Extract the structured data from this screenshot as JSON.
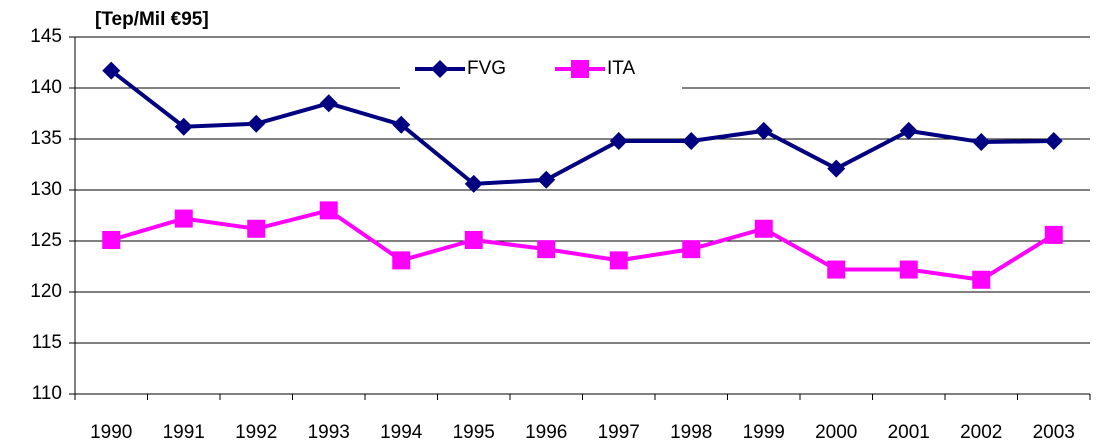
{
  "chart_data": {
    "type": "line",
    "title": "[Tep/Mil €95]",
    "categories": [
      "1990",
      "1991",
      "1992",
      "1993",
      "1994",
      "1995",
      "1996",
      "1997",
      "1998",
      "1999",
      "2000",
      "2001",
      "2002",
      "2003"
    ],
    "series": [
      {
        "name": "FVG",
        "color": "#000080",
        "marker": "diamond",
        "values": [
          141.7,
          136.2,
          136.5,
          138.5,
          136.4,
          130.6,
          131.0,
          134.8,
          134.8,
          135.8,
          132.1,
          135.8,
          134.7,
          134.8
        ]
      },
      {
        "name": "ITA",
        "color": "#ff00ff",
        "marker": "square",
        "values": [
          125.1,
          127.2,
          126.2,
          128.0,
          123.1,
          125.1,
          124.2,
          123.1,
          124.2,
          126.2,
          122.2,
          122.2,
          121.2,
          125.6
        ]
      }
    ],
    "ylim": [
      110,
      145
    ],
    "yticks": [
      110,
      115,
      120,
      125,
      130,
      135,
      140,
      145
    ],
    "grid": true,
    "legend": "top"
  }
}
